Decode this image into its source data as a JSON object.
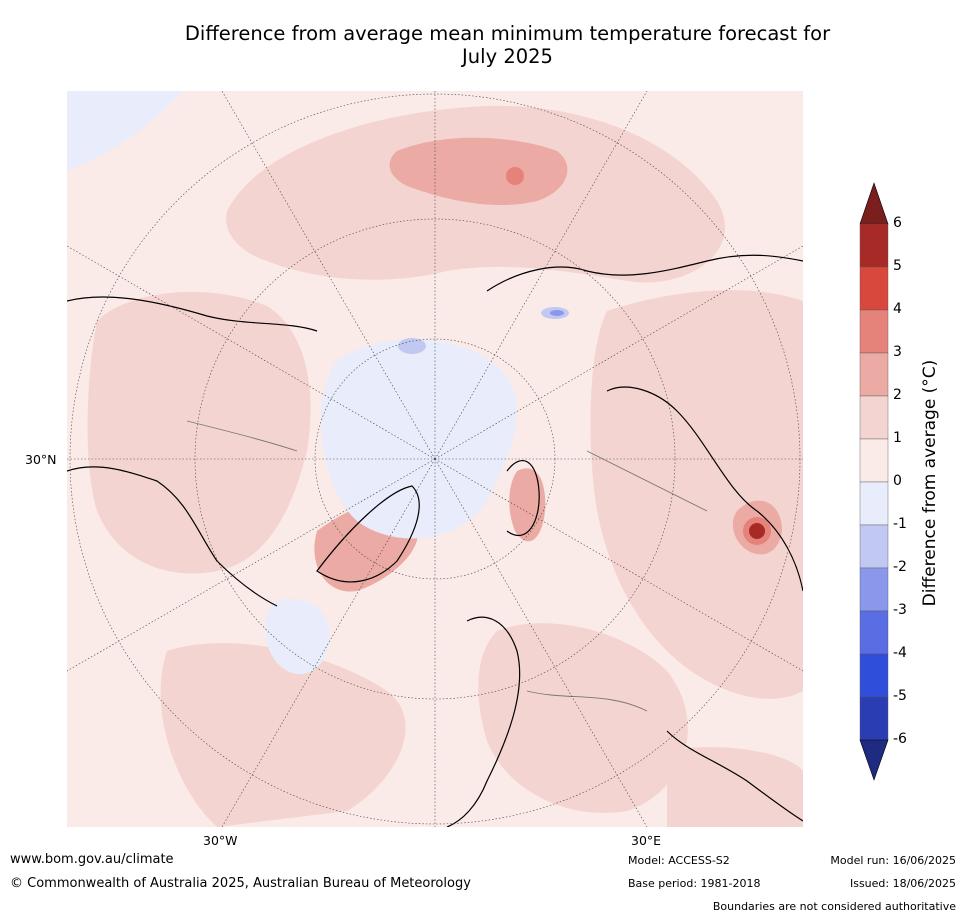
{
  "title_line1": "Difference from average mean minimum temperature forecast for",
  "title_line2": "July 2025",
  "axis_labels": {
    "lat_left": "30°N",
    "lon_left": "30°W",
    "lon_right": "30°E"
  },
  "colorbar": {
    "label": "Difference from average (°C)",
    "ticks": [
      "6",
      "5",
      "4",
      "3",
      "2",
      "1",
      "0",
      "-1",
      "-2",
      "-3",
      "-4",
      "-5",
      "-6"
    ],
    "colors_top_to_bottom": [
      "#7a1e1e",
      "#a82a26",
      "#d9483d",
      "#e5837a",
      "#ebaaa3",
      "#f4d4d0",
      "#fbebe8",
      "#e8ecfb",
      "#c1c8f2",
      "#8a97ea",
      "#5a6de3",
      "#2f4ed9",
      "#2a3db3",
      "#1e2b80"
    ]
  },
  "map": {
    "projection": "North Polar Stereographic",
    "colors": {
      "above_0_1": "#fbebe8",
      "above_1_2": "#f4d4d0",
      "above_2_3": "#ebaaa3",
      "above_3_4": "#e5837a",
      "above_5_6": "#a82a26",
      "below_0_1": "#e8ecfb",
      "below_1_2": "#c1c8f2",
      "below_2_3": "#8a97ea"
    }
  },
  "footer": {
    "url": "www.bom.gov.au/climate",
    "copyright": "© Commonwealth of Australia 2025, Australian Bureau of Meteorology",
    "model": "Model: ACCESS-S2",
    "base_period": "Base period: 1981-2018",
    "model_run": "Model run: 16/06/2025",
    "issued": "Issued: 18/06/2025",
    "disclaimer": "Boundaries are not considered authoritative"
  }
}
